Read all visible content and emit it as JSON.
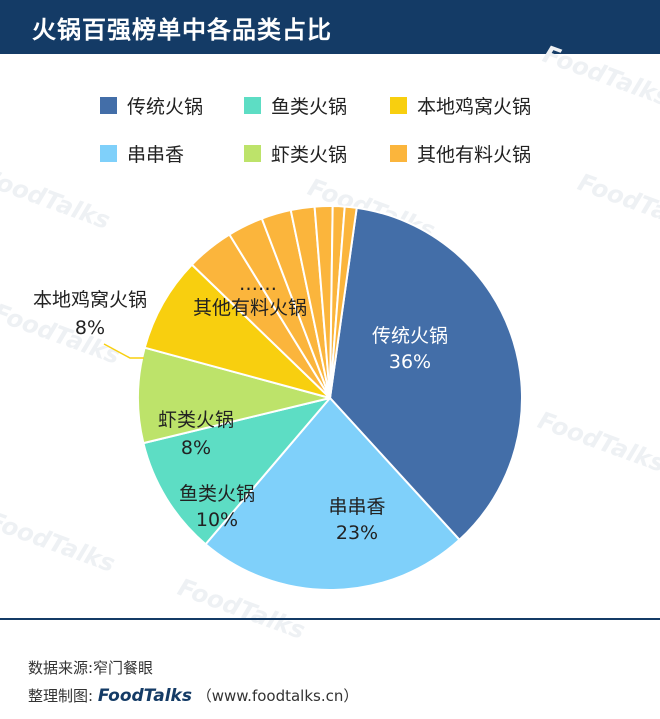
{
  "header": {
    "title": "火锅百强榜单中各品类占比"
  },
  "watermark_text": "FoodTalks",
  "chart_data": {
    "type": "pie",
    "title": "火锅百强榜单中各品类占比",
    "unit": "%",
    "legend_position": "top",
    "start_angle_deg": 8,
    "direction": "clockwise",
    "series": [
      {
        "name": "传统火锅",
        "value": 36,
        "color": "#436ea8",
        "label": "传统火锅",
        "value_label": "36%"
      },
      {
        "name": "串串香",
        "value": 23,
        "color": "#7fd0fa",
        "label": "串串香",
        "value_label": "23%"
      },
      {
        "name": "鱼类火锅",
        "value": 10,
        "color": "#5dddc4",
        "label": "鱼类火锅",
        "value_label": "10%"
      },
      {
        "name": "虾类火锅",
        "value": 8,
        "color": "#bde36a",
        "label": "虾类火锅",
        "value_label": "8%"
      },
      {
        "name": "本地鸡窝火锅",
        "value": 8,
        "color": "#f8cf0f",
        "label": "本地鸡窝火锅",
        "value_label": "8%"
      },
      {
        "name": "其他有料火锅",
        "value": 15,
        "color": "#fbb53c",
        "label": "其他有料火锅",
        "ellipsis": "……",
        "sub_slices": [
          4.0,
          3.0,
          2.5,
          2.0,
          1.5,
          1.0,
          1.0
        ]
      }
    ]
  },
  "footer": {
    "source": "数据来源:窄门餐眼",
    "credit_prefix": "整理制图:",
    "brand": "FoodTalks",
    "url": "（www.foodtalks.cn）"
  }
}
